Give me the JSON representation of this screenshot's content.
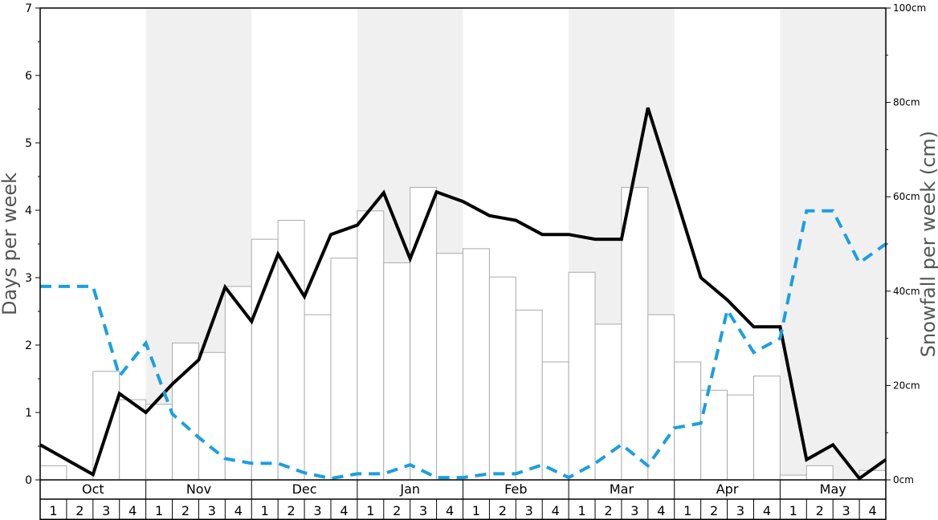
{
  "chart_data": {
    "type": "bar",
    "ylabel": "Days per week",
    "y2label": "Snowfall per week (cm)",
    "ylim": [
      0,
      7
    ],
    "y2lim": [
      0,
      100
    ],
    "y_ticks": [
      "0",
      "1",
      "2",
      "3",
      "4",
      "5",
      "6",
      "7"
    ],
    "y2_ticks": [
      "0cm",
      "20cm",
      "40cm",
      "60cm",
      "80cm",
      "100cm"
    ],
    "months": [
      "Oct",
      "Nov",
      "Dec",
      "Jan",
      "Feb",
      "Mar",
      "Apr",
      "May"
    ],
    "shaded_months": [
      "Nov",
      "Jan",
      "Mar",
      "May"
    ],
    "week_labels": [
      "1",
      "2",
      "3",
      "4"
    ],
    "grid": false,
    "colors": {
      "bars_fill": "#ffffff",
      "bars_stroke": "#aaaaaa",
      "snow_days_line": "#000000",
      "dashed_line": "#1a9fe0",
      "shading": "#f0f0f0"
    },
    "series": [
      {
        "type": "bar",
        "axis": "right",
        "values": [
          3,
          0,
          23,
          17,
          16,
          29,
          27,
          41,
          51,
          55,
          35,
          47,
          57,
          46,
          62,
          48,
          49,
          43,
          36,
          25,
          44,
          33,
          62,
          35,
          25,
          19,
          18,
          22,
          1,
          3,
          0,
          2
        ]
      },
      {
        "type": "line",
        "axis": "left",
        "style": "solid",
        "values": [
          0.52,
          0.3,
          0.08,
          1.28,
          1.0,
          1.42,
          1.78,
          2.86,
          2.35,
          3.35,
          2.72,
          3.64,
          3.78,
          4.26,
          3.28,
          4.27,
          4.13,
          3.92,
          3.85,
          3.64,
          3.64,
          3.57,
          3.57,
          5.52,
          4.27,
          3.0,
          2.67,
          2.27,
          2.27,
          0.3,
          0.52,
          0.02,
          0.3
        ]
      },
      {
        "type": "line",
        "axis": "right",
        "style": "dashed",
        "values": [
          41,
          41,
          41,
          22,
          29,
          14,
          9,
          4.5,
          3.5,
          3.5,
          1.5,
          0.3,
          1.3,
          1.3,
          3.2,
          0.5,
          0.5,
          1.3,
          1.3,
          3.2,
          0.5,
          3.5,
          7.5,
          3,
          11,
          12,
          36,
          27,
          30,
          57,
          57,
          46,
          50
        ]
      }
    ]
  }
}
